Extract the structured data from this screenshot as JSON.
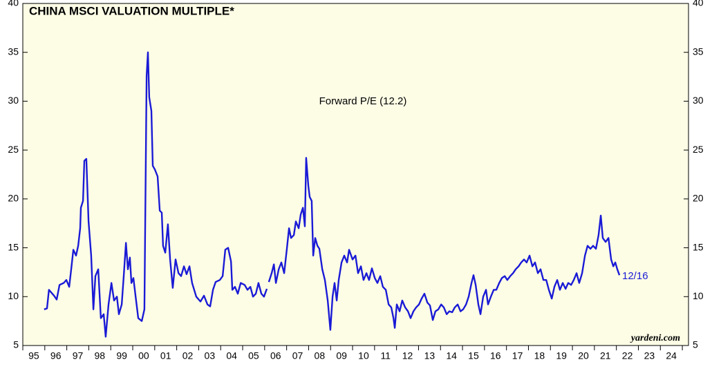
{
  "chart_data": {
    "type": "line",
    "title": "CHINA MSCI VALUATION MULTIPLE*",
    "annotations": [
      "Forward P/E (12.2)",
      "12/16"
    ],
    "source": "yardeni.com",
    "year_labels": [
      "95",
      "96",
      "97",
      "98",
      "99",
      "00",
      "01",
      "02",
      "03",
      "04",
      "05",
      "06",
      "07",
      "08",
      "09",
      "10",
      "11",
      "12",
      "13",
      "14",
      "15",
      "16",
      "17",
      "18",
      "19",
      "20",
      "21",
      "22",
      "23",
      "24"
    ],
    "xlim": [
      1995,
      2025.28
    ],
    "xticks": [
      1995,
      1996,
      1997,
      1998,
      1999,
      2000,
      2001,
      2002,
      2003,
      2004,
      2005,
      2006,
      2007,
      2008,
      2009,
      2010,
      2011,
      2012,
      2013,
      2014,
      2015,
      2016,
      2017,
      2018,
      2019,
      2020,
      2021,
      2022,
      2023,
      2024,
      2025
    ],
    "ylim": [
      5,
      40
    ],
    "yticks": [
      5,
      10,
      15,
      20,
      25,
      30,
      35,
      40
    ],
    "x": [
      1995.97,
      1996.1,
      1996.19,
      1996.42,
      1996.54,
      1996.67,
      1996.86,
      1996.98,
      1997.11,
      1997.2,
      1997.3,
      1997.42,
      1997.52,
      1997.61,
      1997.64,
      1997.74,
      1997.8,
      1997.89,
      1997.99,
      1998.11,
      1998.21,
      1998.3,
      1998.43,
      1998.55,
      1998.68,
      1998.77,
      1998.9,
      1999.03,
      1999.15,
      1999.28,
      1999.37,
      1999.5,
      1999.59,
      1999.69,
      1999.78,
      1999.87,
      1999.94,
      2000.03,
      2000.13,
      2000.25,
      2000.41,
      2000.53,
      2000.63,
      2000.69,
      2000.75,
      2000.85,
      2000.91,
      2001.01,
      2001.13,
      2001.23,
      2001.32,
      2001.38,
      2001.48,
      2001.6,
      2001.7,
      2001.82,
      2001.95,
      2002.08,
      2002.2,
      2002.33,
      2002.45,
      2002.58,
      2002.7,
      2002.89,
      2003.08,
      2003.24,
      2003.4,
      2003.52,
      2003.65,
      2003.77,
      2003.96,
      2004.09,
      2004.21,
      2004.34,
      2004.47,
      2004.53,
      2004.65,
      2004.78,
      2004.91,
      2005.09,
      2005.22,
      2005.35,
      2005.47,
      2005.6,
      2005.72,
      2005.85,
      2005.97,
      2006.1,
      2006.15,
      2006.19,
      2006.32,
      2006.42,
      2006.51,
      2006.64,
      2006.76,
      2006.89,
      2007.01,
      2007.11,
      2007.2,
      2007.33,
      2007.42,
      2007.55,
      2007.64,
      2007.74,
      2007.83,
      2007.89,
      2007.99,
      2008.05,
      2008.14,
      2008.21,
      2008.3,
      2008.4,
      2008.49,
      2008.62,
      2008.74,
      2008.87,
      2008.99,
      2009.09,
      2009.18,
      2009.28,
      2009.37,
      2009.5,
      2009.62,
      2009.75,
      2009.84,
      2010.0,
      2010.13,
      2010.25,
      2010.38,
      2010.5,
      2010.63,
      2010.75,
      2010.88,
      2011.01,
      2011.13,
      2011.26,
      2011.38,
      2011.51,
      2011.64,
      2011.76,
      2011.86,
      2011.92,
      2012.01,
      2012.14,
      2012.26,
      2012.39,
      2012.52,
      2012.64,
      2012.77,
      2012.89,
      2013.02,
      2013.14,
      2013.27,
      2013.4,
      2013.52,
      2013.65,
      2013.77,
      2013.9,
      2014.03,
      2014.15,
      2014.28,
      2014.4,
      2014.53,
      2014.65,
      2014.78,
      2014.91,
      2015.03,
      2015.16,
      2015.28,
      2015.41,
      2015.5,
      2015.6,
      2015.72,
      2015.82,
      2015.94,
      2016.07,
      2016.16,
      2016.29,
      2016.42,
      2016.54,
      2016.67,
      2016.79,
      2016.92,
      2017.04,
      2017.17,
      2017.3,
      2017.42,
      2017.55,
      2017.67,
      2017.8,
      2017.92,
      2018.05,
      2018.18,
      2018.3,
      2018.43,
      2018.55,
      2018.68,
      2018.81,
      2018.93,
      2019.06,
      2019.18,
      2019.31,
      2019.43,
      2019.56,
      2019.69,
      2019.81,
      2019.94,
      2020.06,
      2020.19,
      2020.31,
      2020.44,
      2020.57,
      2020.69,
      2020.82,
      2020.94,
      2021.07,
      2021.19,
      2021.29,
      2021.38,
      2021.51,
      2021.64,
      2021.76,
      2021.86,
      2021.95,
      2022.04,
      2022.14
    ],
    "series": [
      {
        "name": "Forward P/E",
        "color": "#1a1ad6",
        "values": [
          8.7,
          8.8,
          10.7,
          10.1,
          9.7,
          11.2,
          11.4,
          11.7,
          11.0,
          12.8,
          14.8,
          14.2,
          15.2,
          17.0,
          19.1,
          19.8,
          23.9,
          24.1,
          17.7,
          14.2,
          8.7,
          12.1,
          12.8,
          7.8,
          8.2,
          5.9,
          9.2,
          11.4,
          9.6,
          10.0,
          8.2,
          9.2,
          12.1,
          15.5,
          12.8,
          14.0,
          11.4,
          11.9,
          10.0,
          7.8,
          7.5,
          8.7,
          32.6,
          35.0,
          30.4,
          29.0,
          23.4,
          23.0,
          22.3,
          18.8,
          18.6,
          15.2,
          14.5,
          17.4,
          13.8,
          10.9,
          13.8,
          12.4,
          12.1,
          13.1,
          12.3,
          13.1,
          11.4,
          10.0,
          9.5,
          10.1,
          9.2,
          9.0,
          10.7,
          11.5,
          11.7,
          12.1,
          14.8,
          15.0,
          13.6,
          10.7,
          11.0,
          10.3,
          11.4,
          11.2,
          10.7,
          11.0,
          10.0,
          10.3,
          11.4,
          10.3,
          10.0,
          10.8,
          null,
          11.5,
          12.4,
          13.3,
          11.4,
          12.8,
          13.5,
          12.4,
          14.9,
          17.0,
          16.0,
          16.3,
          17.7,
          17.0,
          18.4,
          19.1,
          17.2,
          24.2,
          21.3,
          20.2,
          19.8,
          14.2,
          16.0,
          15.2,
          14.9,
          12.8,
          11.7,
          9.6,
          6.6,
          10.0,
          11.4,
          9.6,
          11.7,
          13.5,
          14.2,
          13.5,
          14.8,
          13.8,
          14.2,
          12.4,
          13.1,
          11.7,
          12.4,
          11.7,
          12.9,
          11.9,
          11.4,
          12.1,
          11.0,
          10.7,
          9.2,
          8.9,
          7.8,
          6.8,
          9.2,
          8.5,
          9.6,
          8.9,
          8.5,
          7.8,
          8.5,
          8.9,
          9.2,
          9.8,
          10.3,
          9.4,
          9.1,
          7.6,
          8.5,
          8.7,
          9.2,
          8.9,
          8.2,
          8.5,
          8.4,
          8.9,
          9.2,
          8.5,
          8.7,
          9.2,
          10.0,
          11.4,
          12.2,
          11.2,
          9.2,
          8.2,
          10.0,
          10.7,
          9.2,
          10.0,
          10.7,
          10.7,
          11.4,
          11.9,
          12.1,
          11.7,
          12.1,
          12.4,
          12.8,
          13.1,
          13.5,
          13.8,
          13.5,
          14.2,
          13.1,
          13.5,
          12.4,
          12.8,
          11.7,
          11.7,
          10.7,
          9.8,
          11.0,
          11.7,
          10.7,
          11.4,
          10.8,
          11.4,
          11.2,
          11.7,
          12.4,
          11.4,
          12.4,
          14.2,
          15.2,
          14.9,
          15.2,
          14.9,
          16.3,
          18.3,
          16.0,
          15.6,
          16.0,
          13.8,
          13.1,
          13.5,
          12.8,
          12.2
        ]
      }
    ]
  }
}
